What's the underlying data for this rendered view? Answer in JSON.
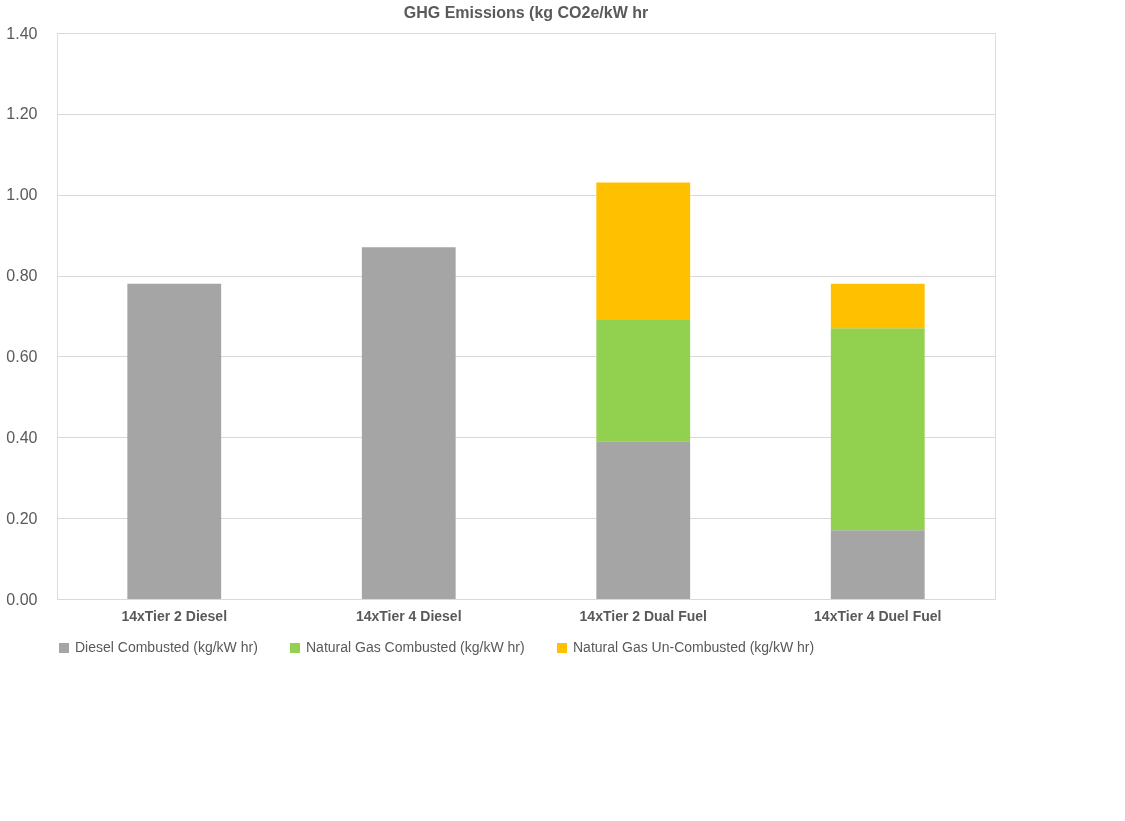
{
  "chart_data": {
    "type": "bar",
    "title": "GHG Emissions (kg CO2e/kW hr",
    "stacked": true,
    "categories": [
      "14xTier 2 Diesel",
      "14xTier 4 Diesel",
      "14xTier 2 Dual Fuel",
      "14xTier 4 Duel Fuel"
    ],
    "series": [
      {
        "name": "Diesel Combusted (kg/kW hr)",
        "color": "#a5a5a5",
        "values": [
          0.78,
          0.87,
          0.39,
          0.17
        ]
      },
      {
        "name": "Natural Gas Combusted (kg/kW hr)",
        "color": "#92d050",
        "values": [
          null,
          null,
          0.3,
          0.5
        ]
      },
      {
        "name": "Natural Gas Un-Combusted (kg/kW hr)",
        "color": "#ffc000",
        "values": [
          null,
          null,
          0.34,
          0.11
        ]
      }
    ],
    "ylim": [
      0,
      1.4
    ],
    "yticks": [
      {
        "value": 0,
        "label": "0.00"
      },
      {
        "value": 0.2,
        "label": "0.20"
      },
      {
        "value": 0.4,
        "label": "0.40"
      },
      {
        "value": 0.6,
        "label": "0.60"
      },
      {
        "value": 0.8,
        "label": "0.80"
      },
      {
        "value": 1.0,
        "label": "1.00"
      },
      {
        "value": 1.2,
        "label": "1.20"
      },
      {
        "value": 1.4,
        "label": "1.40"
      }
    ],
    "grid": "y",
    "legend": "bottom"
  }
}
